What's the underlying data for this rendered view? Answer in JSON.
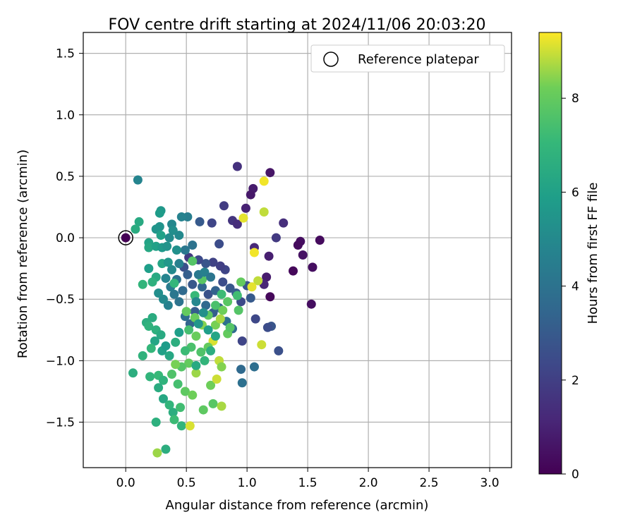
{
  "chart_data": {
    "type": "scatter",
    "title": "FOV centre drift starting at 2024/11/06 20:03:20",
    "xlabel": "Angular distance from reference (arcmin)",
    "ylabel": "Rotation from reference (arcmin)",
    "xlim": [
      -0.35,
      3.18
    ],
    "ylim": [
      -1.87,
      1.67
    ],
    "xticks": [
      0.0,
      0.5,
      1.0,
      1.5,
      2.0,
      2.5,
      3.0
    ],
    "yticks": [
      -1.5,
      -1.0,
      -0.5,
      0.0,
      0.5,
      1.0,
      1.5
    ],
    "x_tick_labels": [
      "0.0",
      "0.5",
      "1.0",
      "1.5",
      "2.0",
      "2.5",
      "3.0"
    ],
    "y_tick_labels": [
      "−1.5",
      "−1.0",
      "−0.5",
      "0.0",
      "0.5",
      "1.0",
      "1.5"
    ],
    "grid": true,
    "colormap": "viridis",
    "colorbar": {
      "label": "Hours from first FF file",
      "range": [
        0,
        9.4
      ],
      "ticks": [
        0,
        2,
        4,
        6,
        8
      ],
      "tick_labels": [
        "0",
        "2",
        "4",
        "6",
        "8"
      ]
    },
    "legend": {
      "position": "top-right",
      "entries": [
        "Reference platepar"
      ]
    },
    "reference_point": {
      "x": 0.0,
      "y": 0.0
    },
    "points": [
      [
        1.19,
        0.53,
        0.6
      ],
      [
        1.6,
        -0.02,
        0.3
      ],
      [
        1.44,
        -0.03,
        0.4
      ],
      [
        1.42,
        -0.06,
        0.3
      ],
      [
        1.46,
        -0.14,
        0.5
      ],
      [
        1.54,
        -0.24,
        0.4
      ],
      [
        1.38,
        -0.27,
        0.2
      ],
      [
        1.53,
        -0.54,
        0.4
      ],
      [
        1.19,
        -0.48,
        0.2
      ],
      [
        1.05,
        0.4,
        0.8
      ],
      [
        1.03,
        0.35,
        0.7
      ],
      [
        0.99,
        0.24,
        1.0
      ],
      [
        1.3,
        0.12,
        1.4
      ],
      [
        1.24,
        0.0,
        1.8
      ],
      [
        1.18,
        -0.15,
        0.9
      ],
      [
        1.16,
        -0.32,
        0.8
      ],
      [
        1.14,
        -0.38,
        1.1
      ],
      [
        1.06,
        -0.08,
        1.2
      ],
      [
        0.92,
        0.58,
        1.5
      ],
      [
        0.81,
        0.26,
        1.9
      ],
      [
        0.88,
        0.14,
        1.6
      ],
      [
        0.92,
        0.11,
        1.4
      ],
      [
        0.71,
        0.12,
        2.2
      ],
      [
        0.77,
        -0.05,
        2.5
      ],
      [
        0.61,
        0.13,
        3.0
      ],
      [
        1.2,
        -0.72,
        2.8
      ],
      [
        1.17,
        -0.73,
        2.5
      ],
      [
        1.07,
        -0.66,
        2.3
      ],
      [
        1.26,
        -0.92,
        2.6
      ],
      [
        0.96,
        -0.84,
        2.2
      ],
      [
        0.95,
        -1.07,
        3.6
      ],
      [
        1.06,
        -1.05,
        3.8
      ],
      [
        0.96,
        -1.18,
        3.9
      ],
      [
        0.82,
        -0.26,
        2.2
      ],
      [
        0.78,
        -0.23,
        2.0
      ],
      [
        0.72,
        -0.2,
        2.1
      ],
      [
        0.66,
        -0.21,
        2.8
      ],
      [
        0.6,
        -0.18,
        2.4
      ],
      [
        0.52,
        -0.16,
        1.8
      ],
      [
        0.48,
        -0.24,
        2.6
      ],
      [
        0.51,
        -0.3,
        3.2
      ],
      [
        0.55,
        -0.38,
        2.9
      ],
      [
        0.63,
        -0.4,
        3.5
      ],
      [
        0.68,
        -0.46,
        2.7
      ],
      [
        0.74,
        -0.43,
        3.3
      ],
      [
        0.8,
        -0.36,
        2.5
      ],
      [
        0.86,
        -0.41,
        2.9
      ],
      [
        0.91,
        -0.45,
        3.1
      ],
      [
        0.95,
        -0.52,
        2.4
      ],
      [
        1.0,
        -0.39,
        2.8
      ],
      [
        1.03,
        -0.49,
        3.0
      ],
      [
        0.66,
        -0.55,
        3.6
      ],
      [
        0.72,
        -0.61,
        3.2
      ],
      [
        0.77,
        -0.57,
        3.4
      ],
      [
        0.83,
        -0.68,
        3.9
      ],
      [
        0.88,
        -0.74,
        3.7
      ],
      [
        0.57,
        -0.6,
        3.1
      ],
      [
        0.53,
        -0.7,
        3.4
      ],
      [
        0.49,
        -0.64,
        3.8
      ],
      [
        0.44,
        -0.52,
        4.0
      ],
      [
        0.4,
        -0.46,
        4.2
      ],
      [
        0.37,
        -0.4,
        4.4
      ],
      [
        0.42,
        -0.34,
        3.9
      ],
      [
        0.47,
        -0.43,
        3.6
      ],
      [
        0.35,
        -0.55,
        4.6
      ],
      [
        0.31,
        -0.5,
        5.0
      ],
      [
        0.27,
        -0.45,
        5.2
      ],
      [
        0.33,
        -0.33,
        4.8
      ],
      [
        0.38,
        -0.26,
        5.0
      ],
      [
        0.44,
        -0.21,
        4.6
      ],
      [
        0.49,
        -0.1,
        4.2
      ],
      [
        0.55,
        -0.06,
        4.0
      ],
      [
        0.51,
        0.17,
        4.5
      ],
      [
        0.46,
        0.17,
        4.7
      ],
      [
        0.38,
        0.11,
        4.9
      ],
      [
        0.39,
        0.06,
        5.2
      ],
      [
        0.28,
        0.09,
        5.4
      ],
      [
        0.25,
        0.07,
        5.5
      ],
      [
        0.29,
        0.22,
        5.6
      ],
      [
        0.28,
        0.2,
        5.8
      ],
      [
        0.29,
        0.02,
        6.0
      ],
      [
        0.19,
        -0.04,
        6.1
      ],
      [
        0.19,
        -0.08,
        6.3
      ],
      [
        0.11,
        0.13,
        6.4
      ],
      [
        0.08,
        0.07,
        6.5
      ],
      [
        0.1,
        0.47,
        4.8
      ],
      [
        0.25,
        -0.07,
        6.0
      ],
      [
        0.3,
        -0.08,
        5.7
      ],
      [
        0.34,
        -0.07,
        5.4
      ],
      [
        0.19,
        -0.25,
        5.9
      ],
      [
        0.3,
        -0.21,
        6.2
      ],
      [
        0.25,
        -0.32,
        6.4
      ],
      [
        0.22,
        -0.36,
        6.7
      ],
      [
        0.14,
        -0.38,
        6.9
      ],
      [
        0.22,
        -0.65,
        6.5
      ],
      [
        0.17,
        -0.69,
        6.6
      ],
      [
        0.19,
        -0.72,
        6.8
      ],
      [
        0.25,
        -0.75,
        6.7
      ],
      [
        0.29,
        -0.79,
        6.4
      ],
      [
        0.24,
        -0.84,
        6.2
      ],
      [
        0.3,
        -0.92,
        6.0
      ],
      [
        0.33,
        -0.88,
        5.8
      ],
      [
        0.36,
        -0.96,
        6.3
      ],
      [
        0.41,
        -0.85,
        6.6
      ],
      [
        0.44,
        -0.77,
        5.9
      ],
      [
        0.21,
        -0.9,
        7.0
      ],
      [
        0.14,
        -0.96,
        6.8
      ],
      [
        0.06,
        -1.1,
        6.6
      ],
      [
        0.2,
        -1.13,
        6.9
      ],
      [
        0.27,
        -1.12,
        7.1
      ],
      [
        0.31,
        -1.16,
        6.8
      ],
      [
        0.27,
        -1.22,
        6.5
      ],
      [
        0.31,
        -1.31,
        6.3
      ],
      [
        0.36,
        -1.36,
        6.9
      ],
      [
        0.39,
        -1.42,
        6.6
      ],
      [
        0.4,
        -1.48,
        7.2
      ],
      [
        0.46,
        -1.53,
        6.9
      ],
      [
        0.45,
        -1.38,
        7.3
      ],
      [
        0.25,
        -1.5,
        6.7
      ],
      [
        0.33,
        -1.72,
        6.6
      ],
      [
        0.26,
        -1.75,
        8.6
      ],
      [
        0.53,
        -1.53,
        9.1
      ],
      [
        0.64,
        -1.4,
        7.9
      ],
      [
        0.72,
        -1.35,
        7.8
      ],
      [
        0.79,
        -1.37,
        8.7
      ],
      [
        0.7,
        -1.2,
        8.2
      ],
      [
        0.75,
        -1.15,
        9.0
      ],
      [
        0.77,
        -1.0,
        8.9
      ],
      [
        0.79,
        -1.05,
        8.4
      ],
      [
        0.72,
        -0.84,
        9.1
      ],
      [
        0.68,
        -0.89,
        8.0
      ],
      [
        0.62,
        -0.93,
        7.6
      ],
      [
        0.58,
        -0.8,
        8.1
      ],
      [
        0.54,
        -0.89,
        7.5
      ],
      [
        0.49,
        -0.92,
        7.2
      ],
      [
        0.52,
        -1.02,
        8.0
      ],
      [
        0.46,
        -1.05,
        7.7
      ],
      [
        0.41,
        -1.03,
        8.3
      ],
      [
        0.38,
        -1.11,
        7.6
      ],
      [
        0.43,
        -1.19,
        7.4
      ],
      [
        0.49,
        -1.25,
        7.9
      ],
      [
        0.55,
        -1.28,
        8.2
      ],
      [
        0.58,
        -1.1,
        8.6
      ],
      [
        0.52,
        -0.75,
        7.4
      ],
      [
        0.57,
        -0.65,
        8.1
      ],
      [
        0.63,
        -0.71,
        8.4
      ],
      [
        0.68,
        -0.63,
        7.9
      ],
      [
        0.74,
        -0.71,
        8.3
      ],
      [
        0.78,
        -0.66,
        8.7
      ],
      [
        0.84,
        -0.78,
        8.0
      ],
      [
        0.86,
        -0.73,
        7.7
      ],
      [
        0.8,
        -0.59,
        8.2
      ],
      [
        0.74,
        -0.55,
        7.5
      ],
      [
        0.79,
        -0.46,
        7.2
      ],
      [
        0.84,
        -0.52,
        7.8
      ],
      [
        0.92,
        -0.47,
        7.3
      ],
      [
        0.93,
        -0.59,
        7.7
      ],
      [
        0.95,
        -0.36,
        8.0
      ],
      [
        1.09,
        -0.35,
        8.9
      ],
      [
        1.04,
        -0.4,
        9.2
      ],
      [
        1.12,
        -0.87,
        9.0
      ],
      [
        1.06,
        -0.12,
        9.3
      ],
      [
        0.97,
        0.16,
        9.2
      ],
      [
        1.14,
        0.21,
        8.9
      ],
      [
        1.14,
        0.46,
        9.3
      ],
      [
        0.55,
        -0.19,
        7.7
      ],
      [
        0.63,
        -0.34,
        7.8
      ],
      [
        0.5,
        -0.6,
        8.0
      ],
      [
        0.57,
        -0.47,
        7.1
      ],
      [
        0.4,
        -0.37,
        7.0
      ],
      [
        0.35,
        -0.2,
        5.6
      ],
      [
        0.42,
        -0.1,
        5.3
      ],
      [
        0.36,
        0.0,
        5.1
      ],
      [
        0.44,
        0.02,
        5.0
      ],
      [
        0.6,
        -0.3,
        4.3
      ],
      [
        0.65,
        -0.28,
        4.6
      ],
      [
        0.7,
        -0.32,
        4.1
      ],
      [
        0.58,
        -0.52,
        4.9
      ],
      [
        0.64,
        -0.61,
        5.3
      ],
      [
        0.6,
        -0.7,
        5.6
      ],
      [
        0.68,
        -0.75,
        5.9
      ],
      [
        0.74,
        -0.8,
        6.2
      ],
      [
        0.7,
        -0.92,
        6.6
      ],
      [
        0.65,
        -1.0,
        6.9
      ],
      [
        0.58,
        -1.04,
        6.4
      ]
    ]
  }
}
